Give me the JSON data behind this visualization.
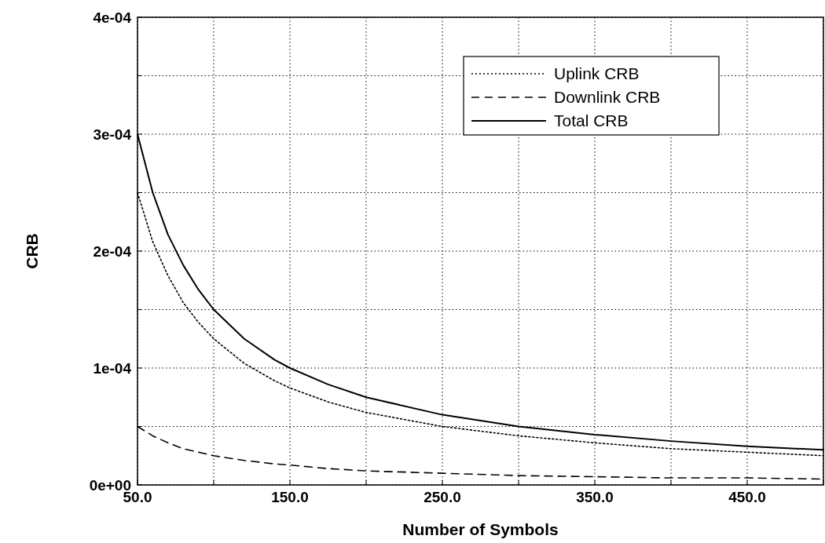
{
  "chart_data": {
    "type": "line",
    "xlabel": "Number of Symbols",
    "ylabel": "CRB",
    "x": [
      50,
      60,
      70,
      80,
      90,
      100,
      120,
      140,
      150,
      175,
      200,
      250,
      300,
      350,
      400,
      450,
      500
    ],
    "series": [
      {
        "name": "Uplink CRB",
        "color": "#000000",
        "line_style": "dotted",
        "values": [
          0.00025,
          0.000208,
          0.000179,
          0.000156,
          0.000139,
          0.000125,
          0.000104,
          8.9e-05,
          8.3e-05,
          7.1e-05,
          6.2e-05,
          5e-05,
          4.2e-05,
          3.6e-05,
          3.1e-05,
          2.8e-05,
          2.5e-05
        ]
      },
      {
        "name": "Downlink CRB",
        "color": "#000000",
        "line_style": "dashed",
        "values": [
          5e-05,
          4.2e-05,
          3.6e-05,
          3.1e-05,
          2.8e-05,
          2.5e-05,
          2.1e-05,
          1.8e-05,
          1.7e-05,
          1.4e-05,
          1.2e-05,
          1e-05,
          8e-06,
          7e-06,
          6e-06,
          6e-06,
          5e-06
        ]
      },
      {
        "name": "Total CRB",
        "color": "#000000",
        "line_style": "solid",
        "values": [
          0.0003,
          0.00025,
          0.000214,
          0.000188,
          0.000167,
          0.00015,
          0.000125,
          0.000107,
          0.0001,
          8.6e-05,
          7.5e-05,
          6e-05,
          5e-05,
          4.3e-05,
          3.75e-05,
          3.3e-05,
          3e-05
        ]
      }
    ],
    "xlim": [
      50,
      500
    ],
    "xticks": [
      {
        "value": 50,
        "label": "50.0"
      },
      {
        "value": 100,
        "label": null
      },
      {
        "value": 150,
        "label": "150.0"
      },
      {
        "value": 200,
        "label": null
      },
      {
        "value": 250,
        "label": "250.0"
      },
      {
        "value": 300,
        "label": null
      },
      {
        "value": 350,
        "label": "350.0"
      },
      {
        "value": 400,
        "label": null
      },
      {
        "value": 450,
        "label": "450.0"
      },
      {
        "value": 500,
        "label": null
      }
    ],
    "ylim": [
      0,
      0.0004
    ],
    "yticks": [
      {
        "value": 0,
        "label": "0e+00"
      },
      {
        "value": 5e-05,
        "label": null
      },
      {
        "value": 0.0001,
        "label": "1e-04"
      },
      {
        "value": 0.00015,
        "label": null
      },
      {
        "value": 0.0002,
        "label": "2e-04"
      },
      {
        "value": 0.00025,
        "label": null
      },
      {
        "value": 0.0003,
        "label": "3e-04"
      },
      {
        "value": 0.00035,
        "label": null
      },
      {
        "value": 0.0004,
        "label": "4e-04"
      }
    ],
    "grid": true,
    "legend": "top right"
  }
}
